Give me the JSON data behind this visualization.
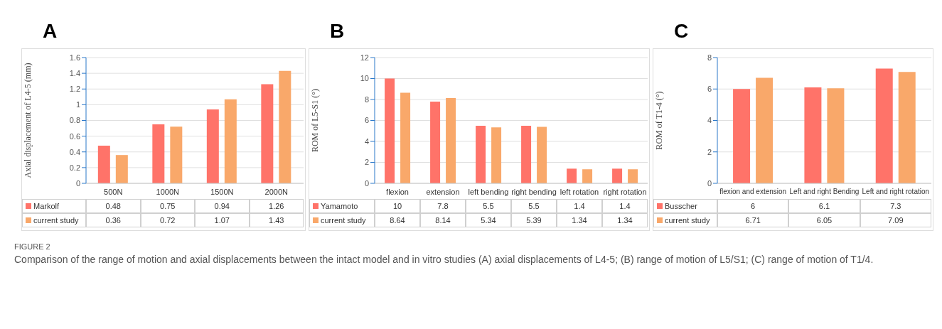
{
  "chart_data": [
    {
      "type": "bar",
      "title": "A",
      "ylabel": "Axial displacement of L4-5 (mm)",
      "categories": [
        "500N",
        "1000N",
        "1500N",
        "2000N"
      ],
      "series": [
        {
          "name": "Markolf",
          "color": "#ff7369",
          "values": [
            0.48,
            0.75,
            0.94,
            1.26
          ]
        },
        {
          "name": "current study",
          "color": "#f9a86a",
          "values": [
            0.36,
            0.72,
            1.07,
            1.43
          ]
        }
      ],
      "ylim": [
        0,
        1.6
      ],
      "yticks": [
        0,
        0.2,
        0.4,
        0.6,
        0.8,
        1,
        1.2,
        1.4,
        1.6
      ],
      "grid": "y",
      "legend": "bottom",
      "data_labels": true,
      "annotations": [
        "FIGURE 2",
        "Comparison of the range of motion and axial displacements between the intact model and in vitro studies (A) axial displacements of L4-5; (B) range of motion of L5/S1; (C) range of motion of T1/4."
      ]
    },
    {
      "type": "bar",
      "title": "B",
      "ylabel": "ROM of L5-S1 (°)",
      "categories": [
        "flexion",
        "extension",
        "left bending",
        "right bending",
        "left rotation",
        "right rotation"
      ],
      "series": [
        {
          "name": "Yamamoto",
          "color": "#ff7369",
          "values": [
            10,
            7.8,
            5.5,
            5.5,
            1.4,
            1.4
          ]
        },
        {
          "name": "current study",
          "color": "#f9a86a",
          "values": [
            8.64,
            8.14,
            5.34,
            5.39,
            1.34,
            1.34
          ]
        }
      ],
      "ylim": [
        0,
        12
      ],
      "yticks": [
        0,
        2,
        4,
        6,
        8,
        10,
        12
      ],
      "grid": "y",
      "legend": "bottom",
      "data_labels": true
    },
    {
      "type": "bar",
      "title": "C",
      "ylabel": "ROM of T1-4 (°)",
      "categories": [
        "flexion and extension",
        "Left and right Bending",
        "Left and right rotation"
      ],
      "series": [
        {
          "name": "Busscher",
          "color": "#ff7369",
          "values": [
            6,
            6.1,
            7.3
          ]
        },
        {
          "name": "current study",
          "color": "#f9a86a",
          "values": [
            6.71,
            6.05,
            7.09
          ]
        }
      ],
      "ylim": [
        0,
        8
      ],
      "yticks": [
        0,
        2,
        4,
        6,
        8
      ],
      "grid": "y",
      "legend": "bottom",
      "data_labels": true
    }
  ]
}
